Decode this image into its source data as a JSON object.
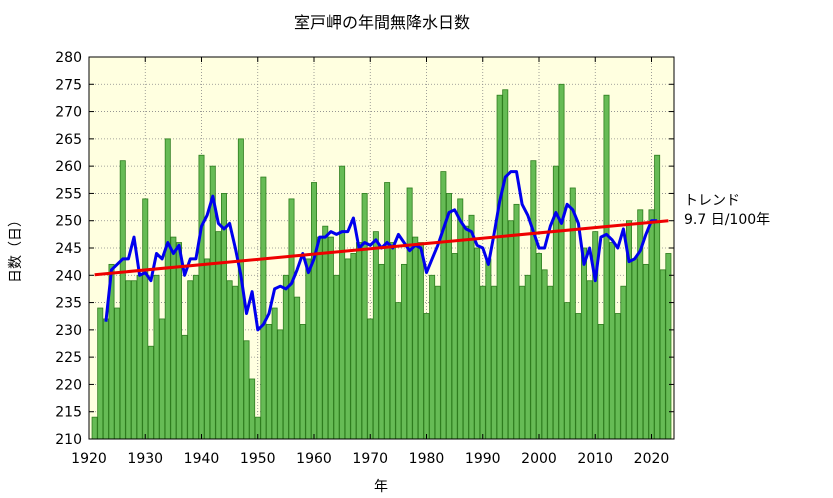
{
  "chart_data": {
    "type": "bar",
    "title": "室戸岬の年間無降水日数",
    "xlabel": "年",
    "ylabel": "日数（日）",
    "xlim": [
      1920,
      2024
    ],
    "ylim": [
      210,
      280
    ],
    "x_ticks": [
      1920,
      1930,
      1940,
      1950,
      1960,
      1970,
      1980,
      1990,
      2000,
      2010,
      2020
    ],
    "y_ticks": [
      210,
      215,
      220,
      225,
      230,
      235,
      240,
      245,
      250,
      255,
      260,
      265,
      270,
      275,
      280
    ],
    "grid": true,
    "colors": {
      "plot_background": "#ffffe0",
      "bar_fill": "#66bb55",
      "bar_edge": "#2e7d1e",
      "moving_average": "#0000ee",
      "trend": "#ee0000"
    },
    "series": [
      {
        "kind": "bar",
        "x": [
          1921,
          1922,
          1923,
          1924,
          1925,
          1926,
          1927,
          1928,
          1929,
          1930,
          1931,
          1932,
          1933,
          1934,
          1935,
          1936,
          1937,
          1938,
          1939,
          1940,
          1941,
          1942,
          1943,
          1944,
          1945,
          1946,
          1947,
          1948,
          1949,
          1950,
          1951,
          1952,
          1953,
          1954,
          1955,
          1956,
          1957,
          1958,
          1959,
          1960,
          1961,
          1962,
          1963,
          1964,
          1965,
          1966,
          1967,
          1968,
          1969,
          1970,
          1971,
          1972,
          1973,
          1974,
          1975,
          1976,
          1977,
          1978,
          1979,
          1980,
          1981,
          1982,
          1983,
          1984,
          1985,
          1986,
          1987,
          1988,
          1989,
          1990,
          1991,
          1992,
          1993,
          1994,
          1995,
          1996,
          1997,
          1998,
          1999,
          2000,
          2001,
          2002,
          2003,
          2004,
          2005,
          2006,
          2007,
          2008,
          2009,
          2010,
          2011,
          2012,
          2013,
          2014,
          2015,
          2016,
          2017,
          2018,
          2019,
          2020,
          2021,
          2022,
          2023
        ],
        "values": [
          214,
          234,
          232,
          242,
          234,
          261,
          239,
          239,
          240,
          254,
          227,
          240,
          232,
          265,
          247,
          246,
          229,
          239,
          240,
          262,
          243,
          260,
          248,
          255,
          239,
          238,
          265,
          228,
          221,
          214,
          258,
          231,
          234,
          230,
          240,
          254,
          236,
          231,
          243,
          257,
          247,
          249,
          247,
          240,
          260,
          243,
          244,
          246,
          255,
          232,
          248,
          242,
          257,
          246,
          235,
          242,
          256,
          247,
          246,
          233,
          240,
          238,
          259,
          255,
          244,
          254,
          249,
          251,
          245,
          238,
          243,
          238,
          273,
          274,
          250,
          253,
          238,
          240,
          261,
          244,
          241,
          238,
          260,
          275,
          235,
          256,
          233,
          245,
          239,
          248,
          231,
          273,
          246,
          233,
          238,
          250,
          243,
          252,
          242,
          252,
          262,
          241,
          244
        ]
      },
      {
        "kind": "line",
        "x": [
          1923,
          1924,
          1925,
          1926,
          1927,
          1928,
          1929,
          1930,
          1931,
          1932,
          1933,
          1934,
          1935,
          1936,
          1937,
          1938,
          1939,
          1940,
          1941,
          1942,
          1943,
          1944,
          1945,
          1946,
          1947,
          1948,
          1949,
          1950,
          1951,
          1952,
          1953,
          1954,
          1955,
          1956,
          1957,
          1958,
          1959,
          1960,
          1961,
          1962,
          1963,
          1964,
          1965,
          1966,
          1967,
          1968,
          1969,
          1970,
          1971,
          1972,
          1973,
          1974,
          1975,
          1976,
          1977,
          1978,
          1979,
          1980,
          1981,
          1982,
          1983,
          1984,
          1985,
          1986,
          1987,
          1988,
          1989,
          1990,
          1991,
          1992,
          1993,
          1994,
          1995,
          1996,
          1997,
          1998,
          1999,
          2000,
          2001,
          2002,
          2003,
          2004,
          2005,
          2006,
          2007,
          2008,
          2009,
          2010,
          2011,
          2012,
          2013,
          2014,
          2015,
          2016,
          2017,
          2018,
          2019,
          2020,
          2021
        ],
        "values": [
          231.5,
          241,
          242,
          243,
          243,
          247,
          240,
          240.5,
          239,
          244,
          243,
          246,
          244,
          245.5,
          240,
          243,
          243,
          249,
          251,
          254.5,
          249.5,
          248.5,
          249.5,
          245,
          240,
          233,
          237,
          230,
          231,
          233,
          237.5,
          238,
          237.5,
          238.5,
          241,
          244,
          240.5,
          243,
          247,
          247,
          248,
          247.5,
          248,
          248,
          250.5,
          245,
          246,
          245.5,
          246.5,
          245,
          246,
          245,
          247.5,
          246,
          244.5,
          245.5,
          245,
          240.5,
          243,
          245.5,
          248.5,
          251.5,
          252,
          250,
          248.5,
          248,
          245.5,
          245,
          242,
          247.5,
          253.5,
          258,
          259,
          259,
          253,
          251,
          248,
          245,
          245,
          249,
          251.5,
          249.5,
          253,
          252,
          249.5,
          242,
          245,
          239,
          247,
          247.5,
          246.5,
          245,
          248.5,
          242.5,
          243,
          244.5,
          247.5,
          250,
          250
        ]
      },
      {
        "kind": "trend",
        "x": [
          1921,
          2023
        ],
        "values": [
          240.1,
          250.0
        ]
      }
    ],
    "annotations": [
      "トレンド",
      "9.7 日/100年"
    ]
  }
}
